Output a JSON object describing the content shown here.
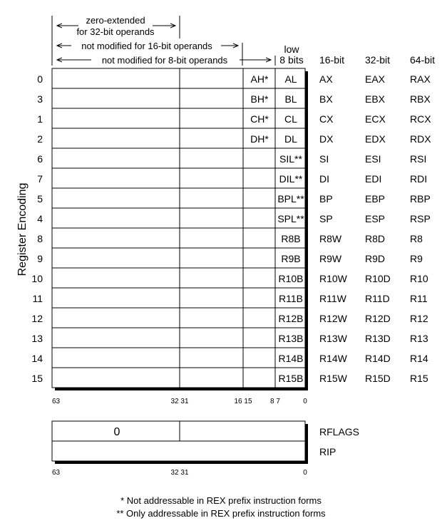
{
  "annotations": {
    "zero_extended": [
      "zero-extended",
      "for 32-bit operands"
    ],
    "not_mod_16": "not modified for 16-bit operands",
    "not_mod_8": "not modified for 8-bit operands"
  },
  "headers": {
    "low": "low",
    "low8": "8 bits",
    "bit16": "16-bit",
    "bit32": "32-bit",
    "bit64": "64-bit"
  },
  "y_axis_label": "Register Encoding",
  "registers": [
    {
      "enc": "0",
      "high": "AH*",
      "low": "AL",
      "r16": "AX",
      "r32": "EAX",
      "r64": "RAX"
    },
    {
      "enc": "3",
      "high": "BH*",
      "low": "BL",
      "r16": "BX",
      "r32": "EBX",
      "r64": "RBX"
    },
    {
      "enc": "1",
      "high": "CH*",
      "low": "CL",
      "r16": "CX",
      "r32": "ECX",
      "r64": "RCX"
    },
    {
      "enc": "2",
      "high": "DH*",
      "low": "DL",
      "r16": "DX",
      "r32": "EDX",
      "r64": "RDX"
    },
    {
      "enc": "6",
      "high": "",
      "low": "SIL**",
      "r16": "SI",
      "r32": "ESI",
      "r64": "RSI"
    },
    {
      "enc": "7",
      "high": "",
      "low": "DIL**",
      "r16": "DI",
      "r32": "EDI",
      "r64": "RDI"
    },
    {
      "enc": "5",
      "high": "",
      "low": "BPL**",
      "r16": "BP",
      "r32": "EBP",
      "r64": "RBP"
    },
    {
      "enc": "4",
      "high": "",
      "low": "SPL**",
      "r16": "SP",
      "r32": "ESP",
      "r64": "RSP"
    },
    {
      "enc": "8",
      "high": "",
      "low": "R8B",
      "r16": "R8W",
      "r32": "R8D",
      "r64": "R8"
    },
    {
      "enc": "9",
      "high": "",
      "low": "R9B",
      "r16": "R9W",
      "r32": "R9D",
      "r64": "R9"
    },
    {
      "enc": "10",
      "high": "",
      "low": "R10B",
      "r16": "R10W",
      "r32": "R10D",
      "r64": "R10"
    },
    {
      "enc": "11",
      "high": "",
      "low": "R11B",
      "r16": "R11W",
      "r32": "R11D",
      "r64": "R11"
    },
    {
      "enc": "12",
      "high": "",
      "low": "R12B",
      "r16": "R12W",
      "r32": "R12D",
      "r64": "R12"
    },
    {
      "enc": "13",
      "high": "",
      "low": "R13B",
      "r16": "R13W",
      "r32": "R13D",
      "r64": "R13"
    },
    {
      "enc": "14",
      "high": "",
      "low": "R14B",
      "r16": "R14W",
      "r32": "R14D",
      "r64": "R14"
    },
    {
      "enc": "15",
      "high": "",
      "low": "R15B",
      "r16": "R15W",
      "r32": "R15D",
      "r64": "R15"
    }
  ],
  "bit_labels_top": [
    "63",
    "32 31",
    "16 15",
    "8 7",
    "0"
  ],
  "flags_box": {
    "value": "0",
    "rflags": "RFLAGS",
    "rip": "RIP"
  },
  "bit_labels_bottom": [
    "63",
    "32 31",
    "0"
  ],
  "footnotes": [
    "* Not addressable in REX prefix instruction forms",
    "** Only addressable in REX prefix instruction forms"
  ]
}
